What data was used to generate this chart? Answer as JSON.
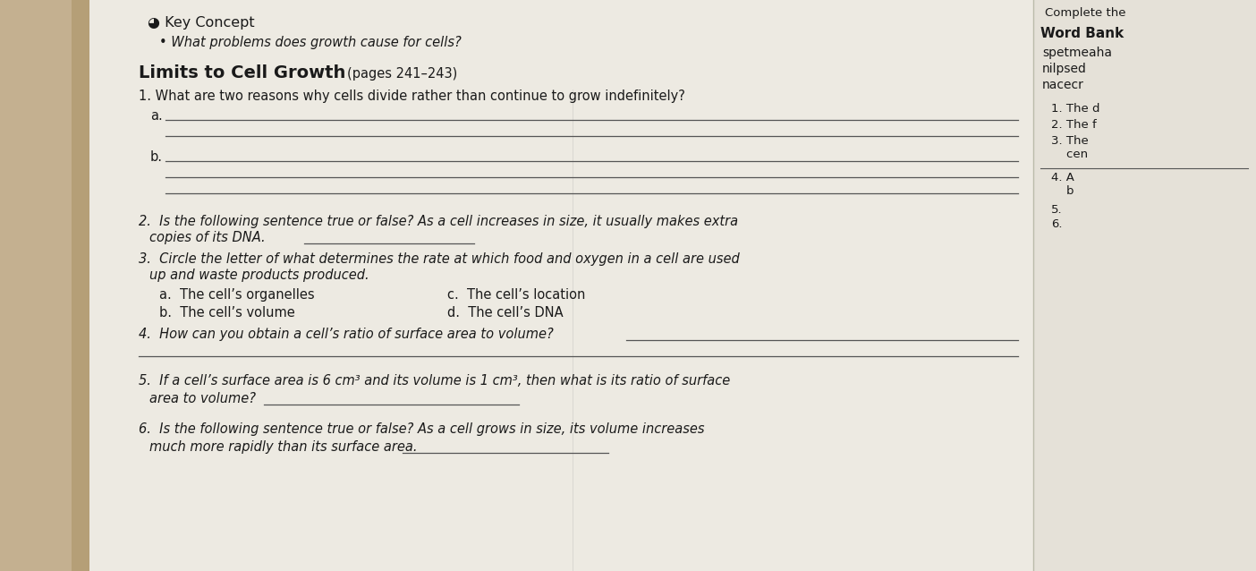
{
  "bg_color": "#d4c9b0",
  "shadow_color": "#b8a882",
  "paper_color": "#edeae2",
  "paper_color2": "#e8e4dc",
  "text_color": "#1a1a1a",
  "line_color": "#555555",
  "title_line1": "Key Concept",
  "title_bullet": "What problems does growth cause for cells?",
  "right_header": "Complete the",
  "word_bank_title": "Word Bank",
  "word_bank_words": [
    "spetmeaha",
    "nilpsed",
    "nacecr"
  ],
  "section_title": "Limits to Cell Growth",
  "section_pages": "(pages 241–243)",
  "q1_text": "1. What are two reasons why cells divide rather than continue to grow indefinitely?",
  "q2_line1": "2.  Is the following sentence true or false? As a cell increases in size, it usually makes extra",
  "q2_line2": "copies of its DNA.",
  "q3_line1": "3.  Circle the letter of what determines the rate at which food and oxygen in a cell are used",
  "q3_line2": "up and waste products produced.",
  "q3_a": "a.  The cell’s organelles",
  "q3_b": "b.  The cell’s volume",
  "q3_c": "c.  The cell’s location",
  "q3_d": "d.  The cell’s DNA",
  "q4_text": "4.  How can you obtain a cell’s ratio of surface area to volume?",
  "q5_line1": "5.  If a cell’s surface area is 6 cm³ and its volume is 1 cm³, then what is its ratio of surface",
  "q5_line2": "area to volume?",
  "q6_line1": "6.  Is the following sentence true or false? As a cell grows in size, its volume increases",
  "q6_line2": "much more rapidly than its surface area.",
  "right_items": [
    "1. The d",
    "2. The f",
    "3. The\n    cen",
    "4. A\n    b",
    "5.",
    "6."
  ]
}
